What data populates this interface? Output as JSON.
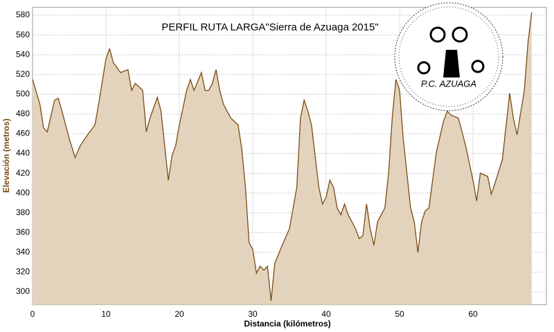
{
  "chart_data": {
    "type": "area",
    "title": "PERFIL RUTA LARGA\"Sierra de Azuaga 2015\"",
    "logo_text": "P.C. AZUAGA",
    "xlabel": "Distancia (kilómetros)",
    "ylabel": "Elevación (metros)",
    "xlim": [
      0,
      70
    ],
    "ylim": [
      287,
      588
    ],
    "xticks": [
      0,
      10,
      20,
      30,
      40,
      50,
      60
    ],
    "yticks": [
      300,
      320,
      340,
      360,
      380,
      400,
      420,
      440,
      460,
      480,
      500,
      520,
      540,
      560,
      580
    ],
    "grid": true,
    "x": [
      0,
      1,
      1.5,
      2,
      3,
      3.5,
      4,
      5,
      5.8,
      6.5,
      7.5,
      8.5,
      9,
      10,
      10.5,
      11,
      12,
      13,
      13.5,
      14,
      15,
      15.5,
      16,
      17,
      17.5,
      18,
      18.5,
      19,
      19.5,
      20,
      21,
      21.5,
      22,
      23,
      23.5,
      24,
      24.5,
      25,
      25.5,
      26,
      27,
      28,
      28.5,
      29,
      29.5,
      30,
      30.5,
      31,
      31.5,
      32,
      32.5,
      33,
      34,
      35,
      36,
      36.5,
      37,
      37.5,
      38,
      39,
      39.5,
      40,
      40.5,
      41,
      41.5,
      42,
      42.5,
      43,
      44,
      44.5,
      45,
      45.5,
      46,
      46.5,
      47,
      48,
      48.5,
      49,
      49.5,
      50,
      50.5,
      51,
      51.5,
      52,
      52.5,
      53,
      53.5,
      54,
      55,
      56,
      56.5,
      57,
      58,
      59,
      60,
      60.5,
      61,
      62,
      62.5,
      63,
      64,
      65,
      65.5,
      66,
      67,
      67.5,
      68
    ],
    "series": [
      {
        "name": "Elevación",
        "color": "#7a4a10",
        "fill": "#e3d3bd",
        "values": [
          515,
          490,
          466,
          462,
          494,
          496,
          483,
          455,
          436,
          448,
          459,
          469,
          490,
          536,
          546,
          532,
          522,
          525,
          504,
          511,
          504,
          462,
          476,
          497,
          483,
          448,
          413,
          438,
          448,
          469,
          504,
          515,
          504,
          522,
          504,
          504,
          511,
          525,
          504,
          490,
          476,
          469,
          445,
          406,
          350,
          343,
          319,
          326,
          322,
          326,
          291,
          329,
          347,
          364,
          406,
          476,
          494,
          483,
          469,
          406,
          389,
          396,
          413,
          406,
          385,
          378,
          389,
          378,
          364,
          354,
          357,
          389,
          364,
          347,
          371,
          385,
          420,
          476,
          515,
          504,
          455,
          420,
          385,
          371,
          340,
          371,
          382,
          385,
          441,
          473,
          483,
          479,
          476,
          448,
          413,
          392,
          420,
          417,
          399,
          410,
          434,
          501,
          476,
          459,
          504,
          553,
          583
        ]
      }
    ]
  }
}
